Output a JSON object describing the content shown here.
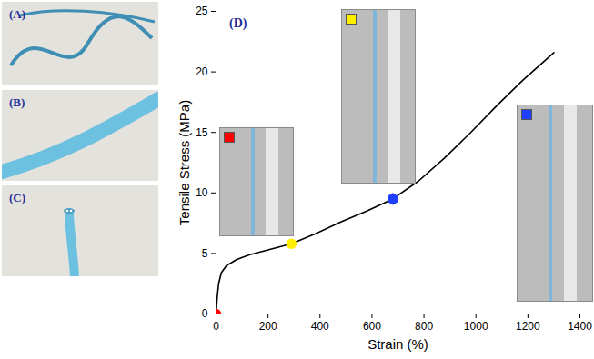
{
  "photo_panels": [
    {
      "label": "(A)"
    },
    {
      "label": "(B)"
    },
    {
      "label": "(C)"
    }
  ],
  "chart_data": {
    "type": "line",
    "panel_label": "(D)",
    "xlabel": "Strain (%)",
    "ylabel": "Tensile Stress (MPa)",
    "x": [
      0,
      5,
      10,
      20,
      40,
      80,
      130,
      200,
      290,
      380,
      480,
      580,
      680,
      780,
      880,
      980,
      1080,
      1180,
      1300
    ],
    "values": [
      0,
      1.5,
      2.5,
      3.4,
      4.0,
      4.5,
      4.9,
      5.3,
      5.8,
      6.6,
      7.6,
      8.5,
      9.5,
      11.0,
      12.9,
      15.0,
      17.2,
      19.3,
      21.6
    ],
    "color": "#000000",
    "xlim": [
      0,
      1400
    ],
    "xticks": [
      0,
      200,
      400,
      600,
      800,
      1000,
      1200,
      1400
    ],
    "ylim": [
      0,
      25
    ],
    "yticks": [
      0,
      5,
      10,
      15,
      20,
      25
    ],
    "points": [
      {
        "x": 0,
        "y": 0,
        "color": "#ff0000",
        "marker": "circle"
      },
      {
        "x": 290,
        "y": 5.8,
        "color": "#ffee00",
        "marker": "circle"
      },
      {
        "x": 680,
        "y": 9.5,
        "color": "#1f3fff",
        "marker": "hexagon"
      }
    ]
  }
}
